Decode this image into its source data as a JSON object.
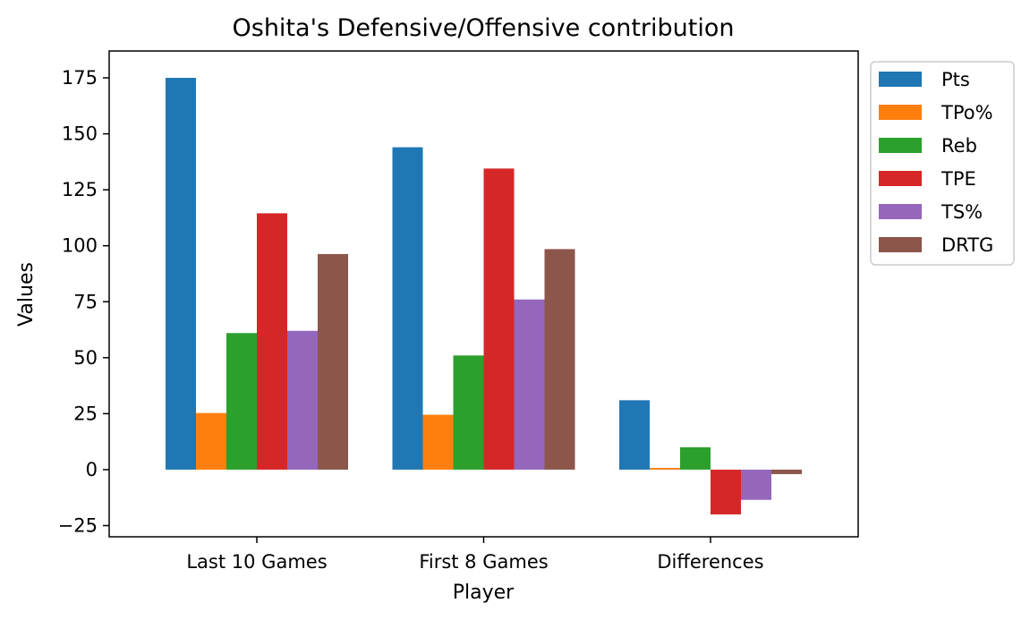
{
  "chart_data": {
    "type": "bar",
    "title": "Oshita's Defensive/Offensive contribution",
    "xlabel": "Player",
    "ylabel": "Values",
    "categories": [
      "Last 10 Games",
      "First 8 Games",
      "Differences"
    ],
    "ylim": [
      -30,
      187
    ],
    "yticks": [
      -25,
      0,
      25,
      50,
      75,
      100,
      125,
      150,
      175
    ],
    "ytick_labels": [
      "−25",
      "0",
      "25",
      "50",
      "75",
      "100",
      "125",
      "150",
      "175"
    ],
    "grid": false,
    "legend_position": "outside-top-right",
    "series": [
      {
        "name": "Pts",
        "color": "#1f77b4",
        "values": [
          175,
          144,
          31
        ]
      },
      {
        "name": "TPo%",
        "color": "#ff7f0e",
        "values": [
          25.3,
          24.5,
          0.8
        ]
      },
      {
        "name": "Reb",
        "color": "#2ca02c",
        "values": [
          61,
          51,
          10
        ]
      },
      {
        "name": "TPE",
        "color": "#d62728",
        "values": [
          114.5,
          134.5,
          -20
        ]
      },
      {
        "name": "TS%",
        "color": "#9467bd",
        "values": [
          62,
          76,
          -13.5
        ]
      },
      {
        "name": "DRTG",
        "color": "#8c564b",
        "values": [
          96.3,
          98.5,
          -2
        ]
      }
    ]
  }
}
